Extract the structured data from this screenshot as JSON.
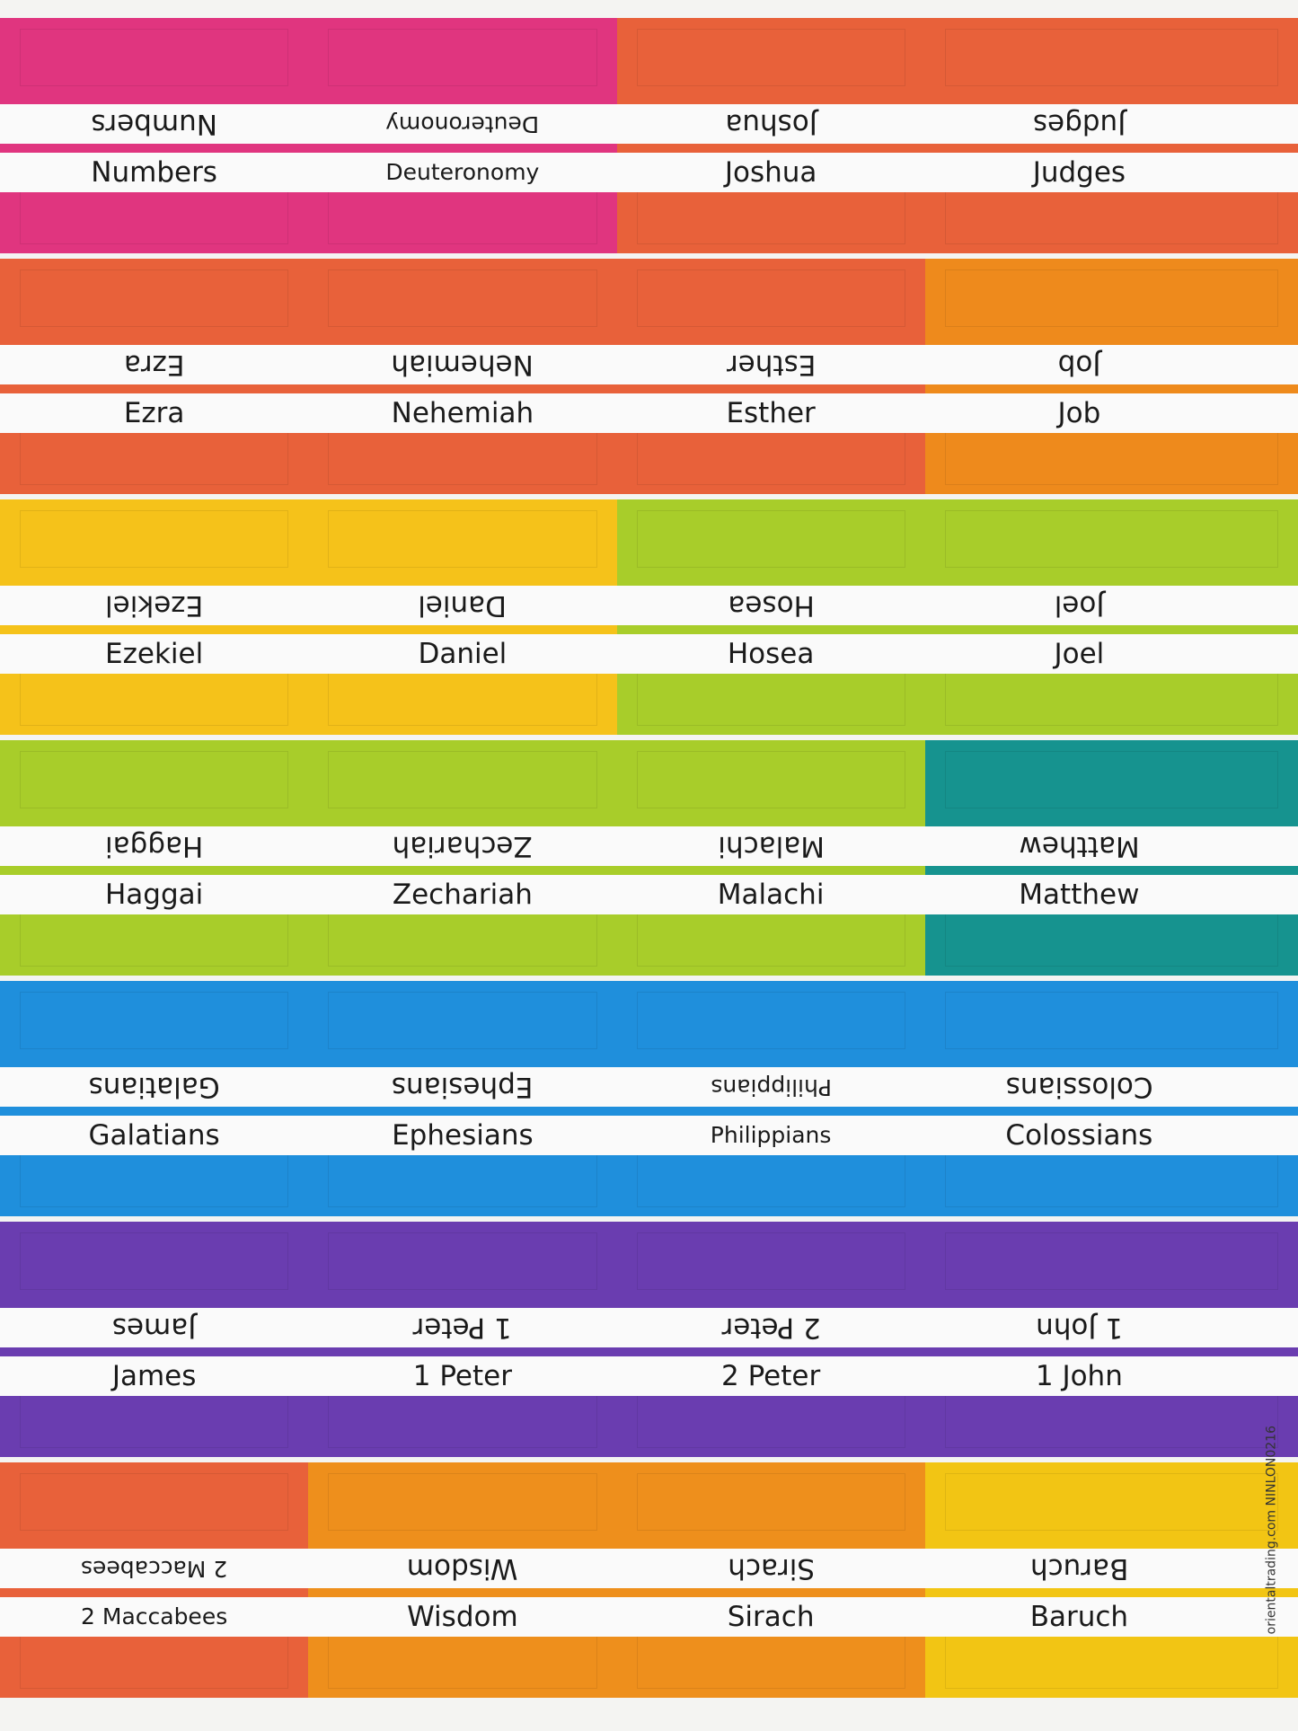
{
  "rows": [
    {
      "tabs": [
        {
          "label": "Numbers",
          "color": "#e0357f"
        },
        {
          "label": "Deuteronomy",
          "color": "#e0357f"
        },
        {
          "label": "Joshua",
          "color": "#e8613a"
        },
        {
          "label": "Judges",
          "color": "#e8613a"
        }
      ]
    },
    {
      "tabs": [
        {
          "label": "Ezra",
          "color": "#e8613a"
        },
        {
          "label": "Nehemiah",
          "color": "#e8613a"
        },
        {
          "label": "Esther",
          "color": "#e8613a"
        },
        {
          "label": "Job",
          "color": "#ee8a1c"
        }
      ]
    },
    {
      "tabs": [
        {
          "label": "Ezekiel",
          "color": "#f5c21a"
        },
        {
          "label": "Daniel",
          "color": "#f5c21a"
        },
        {
          "label": "Hosea",
          "color": "#a8cd2a"
        },
        {
          "label": "Joel",
          "color": "#a8cd2a"
        }
      ]
    },
    {
      "tabs": [
        {
          "label": "Haggai",
          "color": "#a8cd2a"
        },
        {
          "label": "Zechariah",
          "color": "#a8cd2a"
        },
        {
          "label": "Malachi",
          "color": "#a8cd2a"
        },
        {
          "label": "Matthew",
          "color": "#16938f"
        }
      ]
    },
    {
      "tabs": [
        {
          "label": "Galatians",
          "color": "#1f8fdc"
        },
        {
          "label": "Ephesians",
          "color": "#1f8fdc"
        },
        {
          "label": "Philippians",
          "color": "#1f8fdc"
        },
        {
          "label": "Colossians",
          "color": "#1f8fdc"
        }
      ]
    },
    {
      "tabs": [
        {
          "label": "James",
          "color": "#6a3db0"
        },
        {
          "label": "1 Peter",
          "color": "#6a3db0"
        },
        {
          "label": "2 Peter",
          "color": "#6a3db0"
        },
        {
          "label": "1 John",
          "color": "#6a3db0"
        }
      ]
    },
    {
      "tabs": [
        {
          "label": "2 Maccabees",
          "color": "#e8613a"
        },
        {
          "label": "Wisdom",
          "color": "#ee8f1c"
        },
        {
          "label": "Sirach",
          "color": "#ee8f1c"
        },
        {
          "label": "Baruch",
          "color": "#f2c514"
        }
      ]
    }
  ],
  "side_text": "orientaltrading.com  NINLON0216"
}
